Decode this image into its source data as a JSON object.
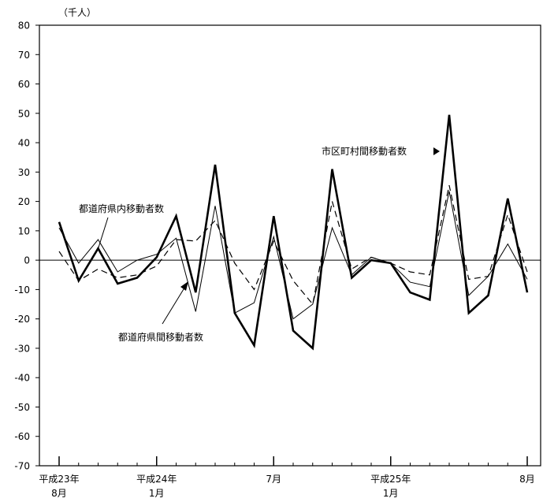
{
  "chart_data": {
    "type": "line",
    "unit_label": "（千人）",
    "ylim": [
      -70,
      80
    ],
    "y_ticks": [
      "80",
      "70",
      "60",
      "50",
      "40",
      "30",
      "20",
      "10",
      "0",
      "-10",
      "-20",
      "-30",
      "-40",
      "-50",
      "-60",
      "-70"
    ],
    "x_tick_labels": [
      {
        "line1": "平成23年",
        "line2": "8月"
      },
      {
        "line1": "平成24年",
        "line2": "1月"
      },
      {
        "line1": "7月",
        "line2": ""
      },
      {
        "line1": "平成25年",
        "line2": "1月"
      },
      {
        "line1": "8月",
        "line2": ""
      }
    ],
    "series": [
      {
        "name": "市区町村間移動者数",
        "values": [
          13,
          -7,
          4,
          -8,
          -6,
          1,
          15,
          -11,
          32.5,
          -18,
          -29,
          15,
          -24,
          -30,
          31,
          -6,
          0,
          -1,
          -11,
          -13.5,
          49.5,
          -18,
          -12,
          21,
          -11
        ]
      },
      {
        "name": "都道府県内移動者数",
        "values": [
          11,
          -1,
          7,
          -4,
          0,
          2,
          7.5,
          -17.5,
          18.5,
          -18,
          -14.5,
          8,
          -20,
          -15,
          11,
          -5,
          1,
          -1,
          -7.5,
          -9,
          23.5,
          -12,
          -5.5,
          5.5,
          -6.5
        ]
      },
      {
        "name": "都道府県間移動者数",
        "values": [
          3,
          -7,
          -3,
          -6,
          -5,
          -2,
          7,
          6.5,
          13.5,
          -1,
          -10,
          6.5,
          -7,
          -15,
          20,
          -3,
          1,
          -1,
          -4,
          -5,
          25.5,
          -6.5,
          -5.5,
          15.5,
          -4
        ]
      }
    ]
  }
}
